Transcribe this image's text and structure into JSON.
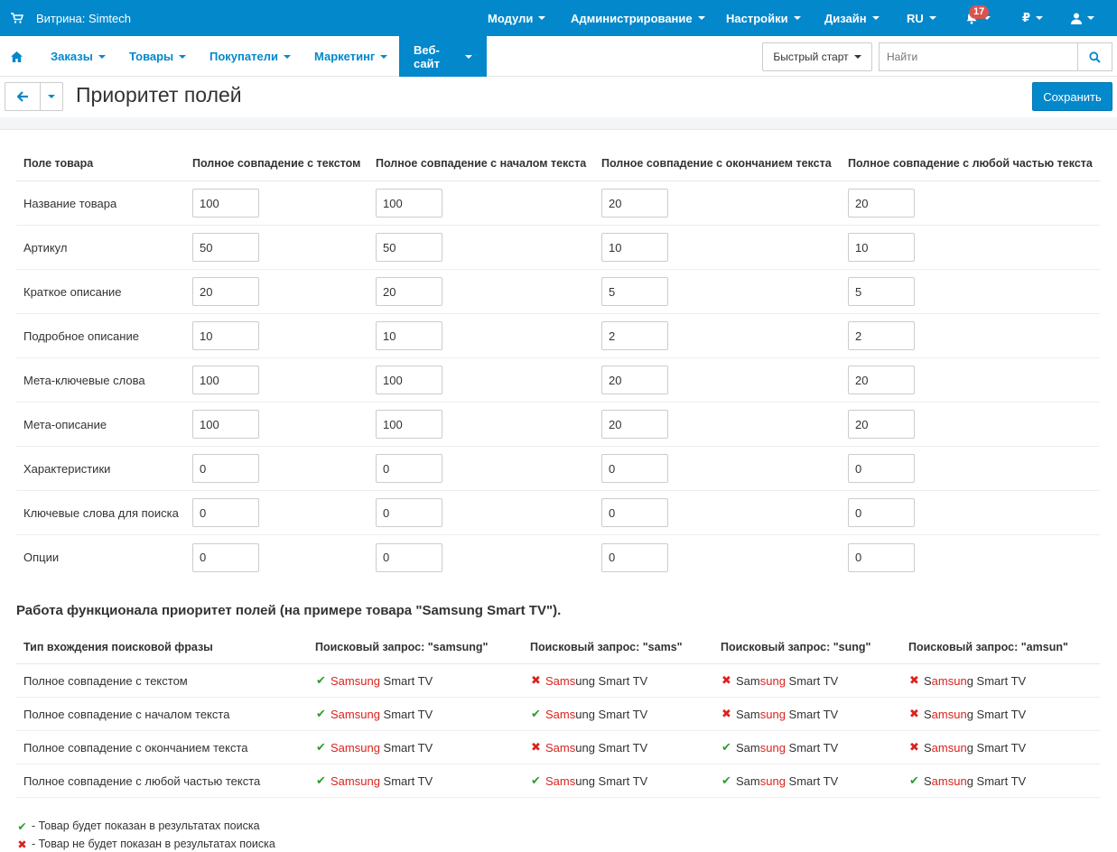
{
  "topbar": {
    "store_label": "Витрина: Simtech",
    "menu": [
      "Модули",
      "Администрирование",
      "Настройки",
      "Дизайн",
      "RU"
    ],
    "notifications_count": "17",
    "currency": "₽"
  },
  "subnav": {
    "items": [
      "Заказы",
      "Товары",
      "Покупатели",
      "Маркетинг",
      "Веб-сайт"
    ],
    "quick_start": "Быстрый старт",
    "search_placeholder": "Найти"
  },
  "page": {
    "title": "Приоритет полей",
    "save_label": "Сохранить"
  },
  "priority_table": {
    "headers": [
      "Поле товара",
      "Полное совпадение с текстом",
      "Полное совпадение с началом текста",
      "Полное совпадение с окончанием текста",
      "Полное совпадение с любой частью текста"
    ],
    "rows": [
      {
        "label": "Название товара",
        "values": [
          "100",
          "100",
          "20",
          "20"
        ]
      },
      {
        "label": "Артикул",
        "values": [
          "50",
          "50",
          "10",
          "10"
        ]
      },
      {
        "label": "Краткое описание",
        "values": [
          "20",
          "20",
          "5",
          "5"
        ]
      },
      {
        "label": "Подробное описание",
        "values": [
          "10",
          "10",
          "2",
          "2"
        ]
      },
      {
        "label": "Мета-ключевые слова",
        "values": [
          "100",
          "100",
          "20",
          "20"
        ]
      },
      {
        "label": "Мета-описание",
        "values": [
          "100",
          "100",
          "20",
          "20"
        ]
      },
      {
        "label": "Характеристики",
        "values": [
          "0",
          "0",
          "0",
          "0"
        ]
      },
      {
        "label": "Ключевые слова для поиска",
        "values": [
          "0",
          "0",
          "0",
          "0"
        ]
      },
      {
        "label": "Опции",
        "values": [
          "0",
          "0",
          "0",
          "0"
        ]
      }
    ]
  },
  "example": {
    "title_prefix": "Работа функционала приоритет полей (на примере товара \"",
    "product": "Samsung Smart TV",
    "title_suffix": "\").",
    "headers": [
      "Тип вхождения поисковой фразы",
      "Поисковый запрос: \"samsung\"",
      "Поисковый запрос: \"sams\"",
      "Поисковый запрос: \"sung\"",
      "Поисковый запрос: \"amsun\""
    ],
    "queries": [
      "samsung",
      "sams",
      "sung",
      "amsun"
    ],
    "rows": [
      {
        "label": "Полное совпадение с текстом",
        "results": [
          true,
          false,
          false,
          false
        ]
      },
      {
        "label": "Полное совпадение с началом текста",
        "results": [
          true,
          true,
          false,
          false
        ]
      },
      {
        "label": "Полное совпадение с окончанием текста",
        "results": [
          true,
          false,
          true,
          false
        ]
      },
      {
        "label": "Полное совпадение с любой частью текста",
        "results": [
          true,
          true,
          true,
          true
        ]
      }
    ]
  },
  "legend": {
    "shown": "- Товар будет показан в результатах поиска",
    "hidden": "- Товар не будет показан в результатах поиска"
  },
  "colors": {
    "brand": "#0388cc",
    "match": "#d9241e",
    "ok": "#2e9e2e",
    "no": "#d9241e"
  }
}
